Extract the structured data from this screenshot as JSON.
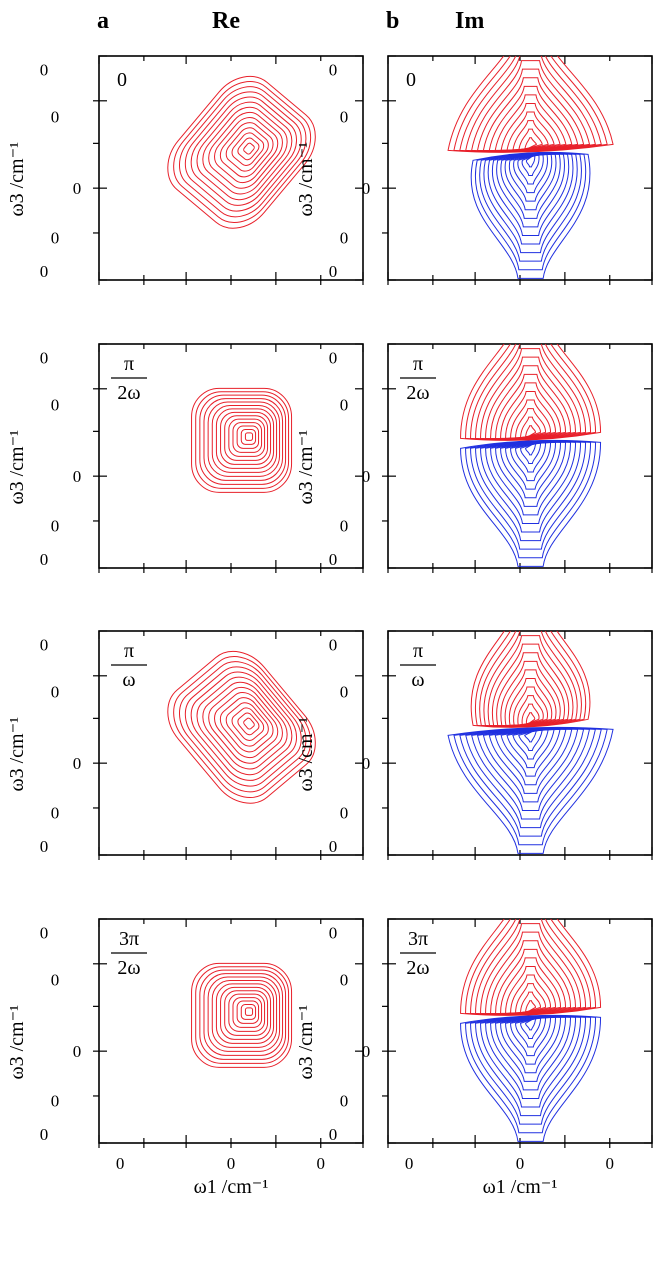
{
  "chart_data": {
    "type": "contour",
    "columns": [
      {
        "id": "a",
        "letter": "a",
        "title": "Re"
      },
      {
        "id": "b",
        "letter": "b",
        "title": "Im"
      }
    ],
    "panel_labels": [
      "0",
      "π/2ω",
      "π/ω",
      "3π/2ω"
    ],
    "panel_label_parts": [
      {
        "plain": "0"
      },
      {
        "num": "π",
        "den": "2ω"
      },
      {
        "num": "π",
        "den": "ω"
      },
      {
        "num": "3π",
        "den": "2ω"
      }
    ],
    "xlabel": "ω1 /cm⁻¹",
    "ylabel": "ω3 /cm⁻¹",
    "x_tick_labels": [
      "0",
      "0",
      "0"
    ],
    "y_tick_labels": [
      "0",
      "0",
      "0",
      "0",
      "0"
    ],
    "positive_color": "#e8202a",
    "negative_color": "#2030e0",
    "contour_levels": 14,
    "tilt_per_panel": [
      0.5,
      0.0,
      -0.5,
      0.0
    ]
  }
}
